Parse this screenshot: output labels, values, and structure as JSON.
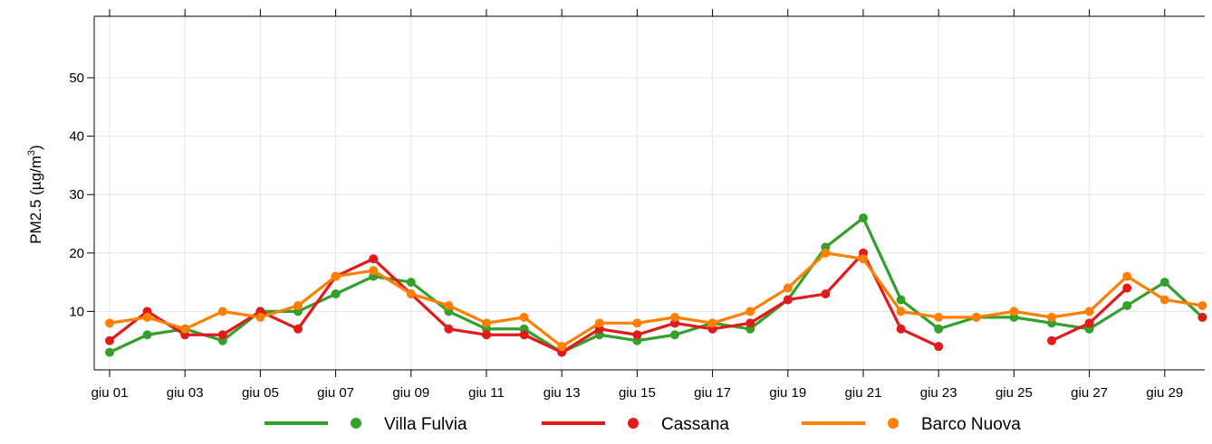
{
  "chart_data": {
    "type": "line",
    "ylabel": "PM2.5 (µg/m",
    "ylabel_sup": "3",
    "ylabel_close": ")",
    "ylim": [
      0,
      60
    ],
    "yticks": [
      10,
      20,
      30,
      40,
      50
    ],
    "grid": true,
    "legend_position": "bottom",
    "x": [
      "giu 01",
      "giu 02",
      "giu 03",
      "giu 04",
      "giu 05",
      "giu 06",
      "giu 07",
      "giu 08",
      "giu 09",
      "giu 10",
      "giu 11",
      "giu 12",
      "giu 13",
      "giu 14",
      "giu 15",
      "giu 16",
      "giu 17",
      "giu 18",
      "giu 19",
      "giu 20",
      "giu 21",
      "giu 22",
      "giu 23",
      "giu 24",
      "giu 25",
      "giu 26",
      "giu 27",
      "giu 28",
      "giu 29",
      "giu 30"
    ],
    "xtick_labels": [
      "giu 01",
      "giu 03",
      "giu 05",
      "giu 07",
      "giu 09",
      "giu 11",
      "giu 13",
      "giu 15",
      "giu 17",
      "giu 19",
      "giu 21",
      "giu 23",
      "giu 25",
      "giu 27",
      "giu 29"
    ],
    "series": [
      {
        "name": "Villa Fulvia",
        "color": "#33a02c",
        "values": [
          3,
          6,
          7,
          5,
          10,
          10,
          13,
          16,
          15,
          10,
          7,
          7,
          3,
          6,
          5,
          6,
          8,
          7,
          12,
          21,
          26,
          12,
          7,
          9,
          9,
          8,
          7,
          11,
          15,
          9
        ]
      },
      {
        "name": "Cassana",
        "color": "#e31a1c",
        "values": [
          5,
          10,
          6,
          6,
          10,
          7,
          16,
          19,
          13,
          7,
          6,
          6,
          3,
          7,
          6,
          8,
          7,
          8,
          12,
          13,
          20,
          7,
          4,
          null,
          null,
          5,
          8,
          14,
          null,
          9
        ]
      },
      {
        "name": "Barco Nuova",
        "color": "#ff7f00",
        "values": [
          8,
          9,
          7,
          10,
          9,
          11,
          16,
          17,
          13,
          11,
          8,
          9,
          4,
          8,
          8,
          9,
          8,
          10,
          14,
          20,
          19,
          10,
          9,
          9,
          10,
          9,
          10,
          16,
          12,
          11
        ]
      }
    ]
  }
}
